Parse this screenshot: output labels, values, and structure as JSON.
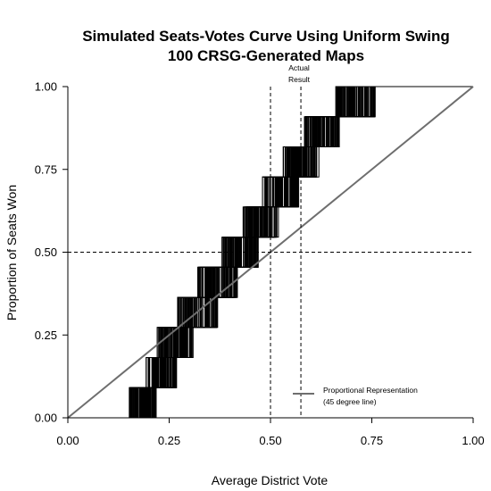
{
  "chart_data": {
    "type": "line",
    "title": "Simulated Seats-Votes Curve Using Uniform Swing",
    "subtitle": "100 CRSG-Generated Maps",
    "xlabel": "Average District Vote",
    "ylabel": "Proportion of Seats Won",
    "xlim": [
      0,
      1
    ],
    "ylim": [
      0,
      1
    ],
    "x_ticks": [
      "0.00",
      "0.25",
      "0.50",
      "0.75",
      "1.00"
    ],
    "y_ticks": [
      "0.00",
      "0.25",
      "0.50",
      "0.75",
      "1.00"
    ],
    "grid": false,
    "actual_result_label_line1": "Actual",
    "actual_result_label_line2": "Result",
    "actual_result_vote": 0.575,
    "reference_lines": {
      "vertical_x": 0.5,
      "horizontal_y": 0.5
    },
    "n_seats": 11,
    "n_maps": 100,
    "proportional_line": {
      "x": [
        0,
        1
      ],
      "y": [
        0,
        1
      ],
      "color": "#6e6e6e"
    },
    "legend_text_line1": "Proportional Representation",
    "legend_text_line2": "(45 degree line)",
    "legend_position": "bottom-right",
    "series_color": "#000000",
    "step_thresholds_range": [
      [
        0.15,
        0.22
      ],
      [
        0.19,
        0.27
      ],
      [
        0.22,
        0.31
      ],
      [
        0.27,
        0.37
      ],
      [
        0.32,
        0.42
      ],
      [
        0.38,
        0.47
      ],
      [
        0.43,
        0.52
      ],
      [
        0.48,
        0.57
      ],
      [
        0.53,
        0.62
      ],
      [
        0.58,
        0.67
      ],
      [
        0.66,
        0.76
      ]
    ]
  }
}
